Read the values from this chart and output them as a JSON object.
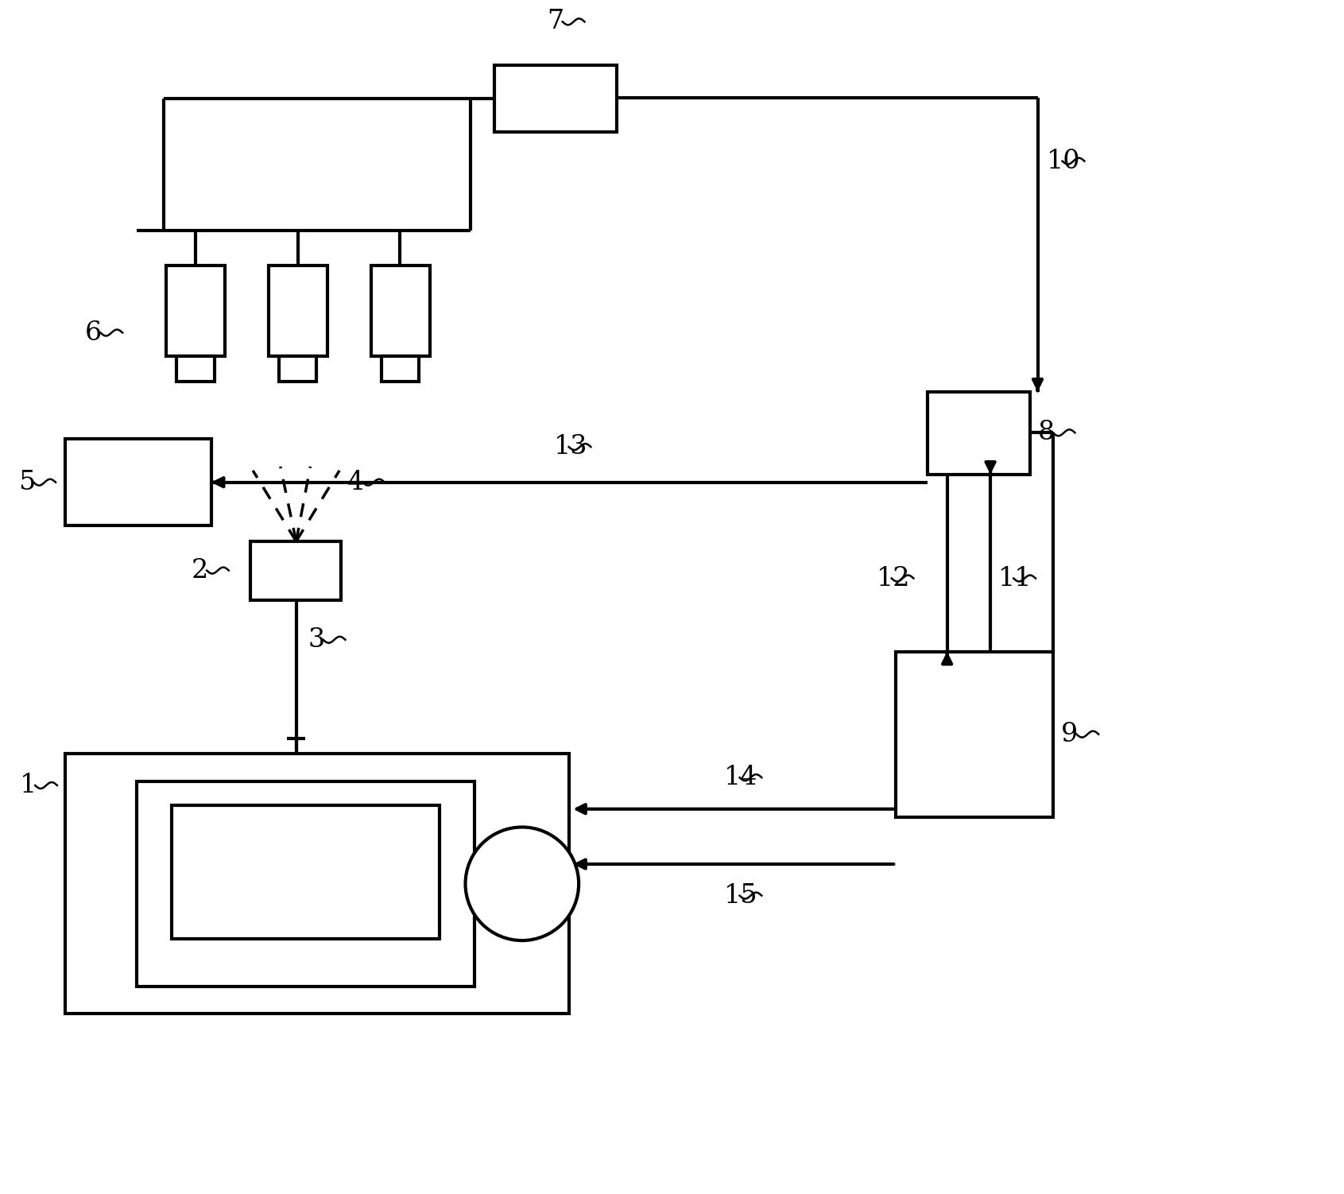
{
  "bg_color": "#ffffff",
  "line_color": "#000000",
  "fig_width": 16.91,
  "fig_height": 15.02
}
